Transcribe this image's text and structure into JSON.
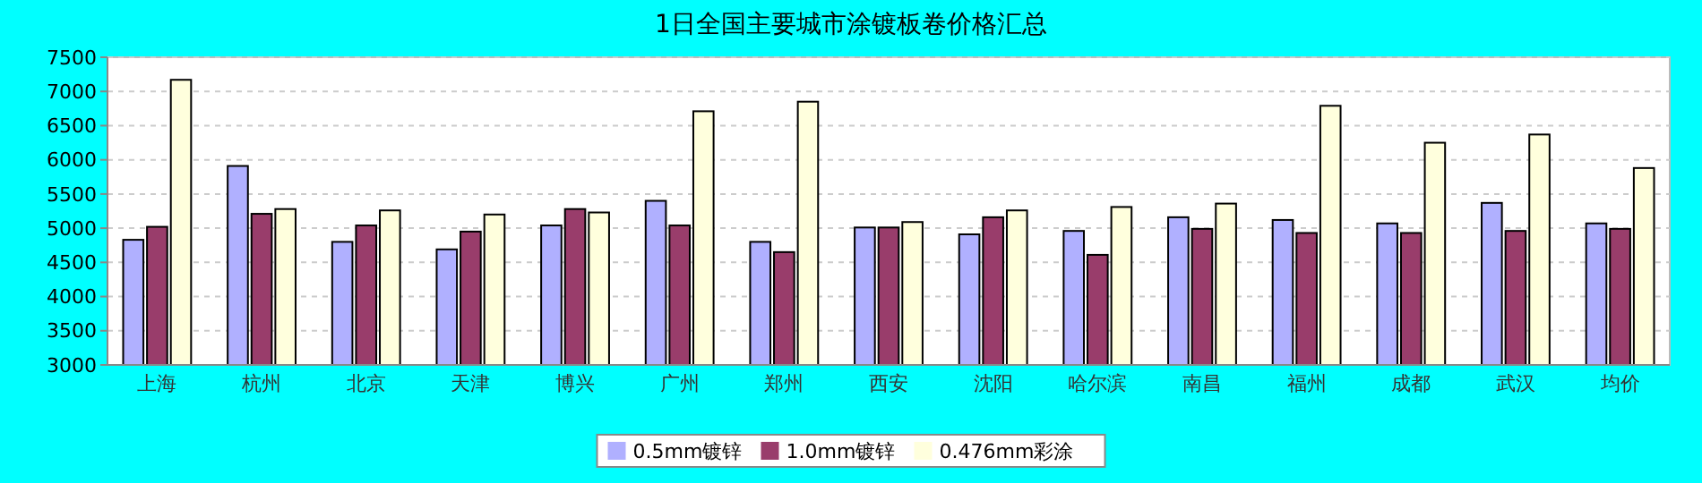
{
  "chart_data": {
    "type": "bar",
    "title": "1日全国主要城市涂镀板卷价格汇总",
    "categories": [
      "上海",
      "杭州",
      "北京",
      "天津",
      "博兴",
      "广州",
      "郑州",
      "西安",
      "沈阳",
      "哈尔滨",
      "南昌",
      "福州",
      "成都",
      "武汉",
      "均价"
    ],
    "series": [
      {
        "name": "0.5mm镀锌",
        "color": "#b0b0ff",
        "values": [
          4830,
          5910,
          4800,
          4690,
          5040,
          5400,
          4800,
          5010,
          4910,
          4960,
          5160,
          5120,
          5070,
          5370,
          5070
        ]
      },
      {
        "name": "1.0mm镀锌",
        "color": "#993d6b",
        "values": [
          5020,
          5210,
          5040,
          4950,
          5280,
          5040,
          4650,
          5010,
          5160,
          4610,
          4990,
          4930,
          4930,
          4960,
          4990
        ]
      },
      {
        "name": "0.476mm彩涂",
        "color": "#ffffdd",
        "values": [
          7170,
          5280,
          5260,
          5200,
          5230,
          6710,
          6850,
          5090,
          5260,
          5310,
          5360,
          6790,
          6250,
          6370,
          5880
        ]
      }
    ],
    "ylim": [
      3000,
      7500
    ],
    "yticks": [
      3000,
      3500,
      4000,
      4500,
      5000,
      5500,
      6000,
      6500,
      7000,
      7500
    ],
    "grid": "y",
    "legend": "bottom"
  }
}
